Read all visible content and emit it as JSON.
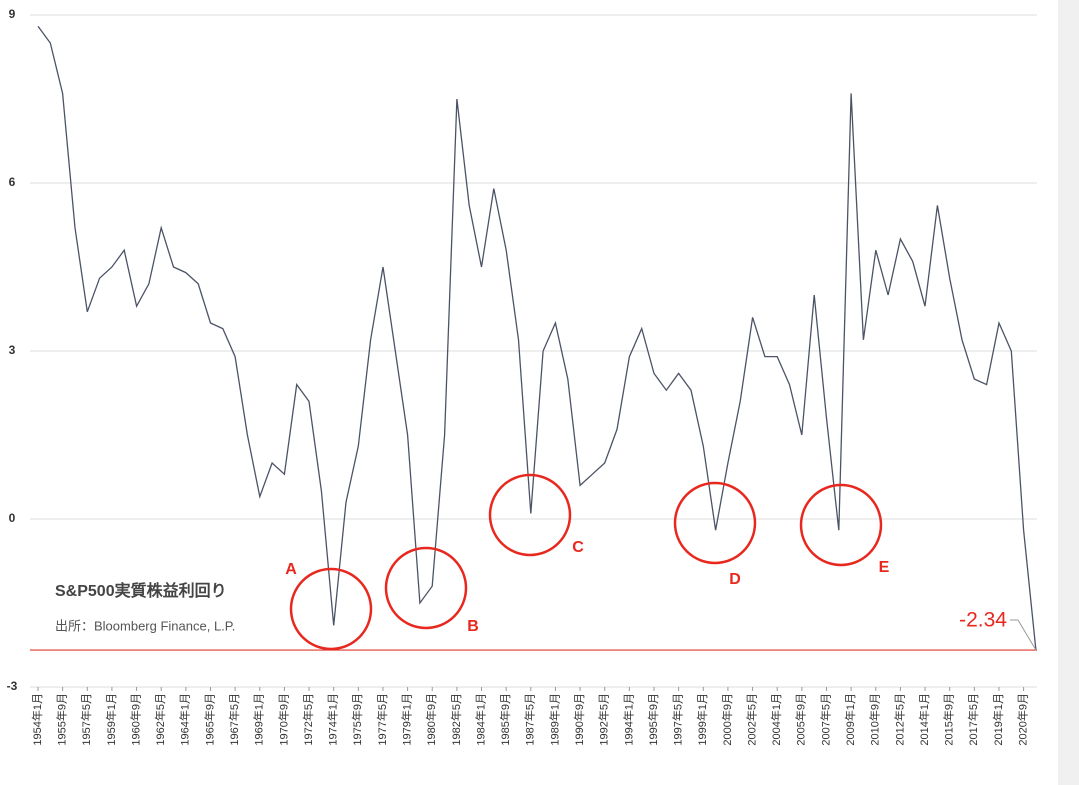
{
  "chart_data": {
    "type": "line",
    "title": "S&P500実質株益利回り",
    "source": "出所：Bloomberg Finance, L.P.",
    "categories": [
      "1954年1月",
      null,
      "1955年9月",
      null,
      "1957年5月",
      null,
      "1959年1月",
      null,
      "1960年9月",
      null,
      "1962年5月",
      null,
      "1964年1月",
      null,
      "1965年9月",
      null,
      "1967年5月",
      null,
      "1969年1月",
      null,
      "1970年9月",
      null,
      "1972年5月",
      null,
      "1974年1月",
      null,
      "1975年9月",
      null,
      "1977年5月",
      null,
      "1979年1月",
      null,
      "1980年9月",
      null,
      "1982年5月",
      null,
      "1984年1月",
      null,
      "1985年9月",
      null,
      "1987年5月",
      null,
      "1989年1月",
      null,
      "1990年9月",
      null,
      "1992年5月",
      null,
      "1994年1月",
      null,
      "1995年9月",
      null,
      "1997年5月",
      null,
      "1999年1月",
      null,
      "2000年9月",
      null,
      "2002年5月",
      null,
      "2004年1月",
      null,
      "2005年9月",
      null,
      "2007年5月",
      null,
      "2009年1月",
      null,
      "2010年9月",
      null,
      "2012年5月",
      null,
      "2014年1月",
      null,
      "2015年9月",
      null,
      "2017年5月",
      null,
      "2019年1月",
      null,
      "2020年9月",
      null
    ],
    "values": [
      8.8,
      8.5,
      7.6,
      5.2,
      3.7,
      4.3,
      4.5,
      4.8,
      3.8,
      4.2,
      5.2,
      4.5,
      4.4,
      4.2,
      3.5,
      3.4,
      2.9,
      1.5,
      0.4,
      1.0,
      0.8,
      2.4,
      2.1,
      0.5,
      -1.9,
      0.3,
      1.3,
      3.2,
      4.5,
      3.0,
      1.5,
      -1.5,
      -1.2,
      1.5,
      7.5,
      5.6,
      4.5,
      5.9,
      4.8,
      3.2,
      0.1,
      3.0,
      3.5,
      2.5,
      0.6,
      0.8,
      1.0,
      1.6,
      2.9,
      3.4,
      2.6,
      2.3,
      2.6,
      2.3,
      1.3,
      -0.2,
      1.0,
      2.1,
      3.6,
      2.9,
      2.9,
      2.4,
      1.5,
      4.0,
      1.8,
      -0.2,
      7.6,
      3.2,
      4.8,
      4.0,
      5.0,
      4.6,
      3.8,
      5.6,
      4.3,
      3.2,
      2.5,
      2.4,
      3.5,
      3.0,
      -0.2,
      -2.34
    ],
    "value_labels": {
      "81": "-2.34"
    },
    "color": "#4b5366",
    "reference_line": {
      "value": -2.34,
      "color": "#e03a2e"
    },
    "annotations": [
      {
        "label": "A"
      },
      {
        "label": "B"
      },
      {
        "label": "C"
      },
      {
        "label": "D"
      },
      {
        "label": "E"
      }
    ],
    "annotation_color": "#e8281e",
    "ylim": [
      -3,
      9
    ],
    "yticks": [
      -3,
      0,
      3,
      6,
      9
    ],
    "grid": true
  }
}
